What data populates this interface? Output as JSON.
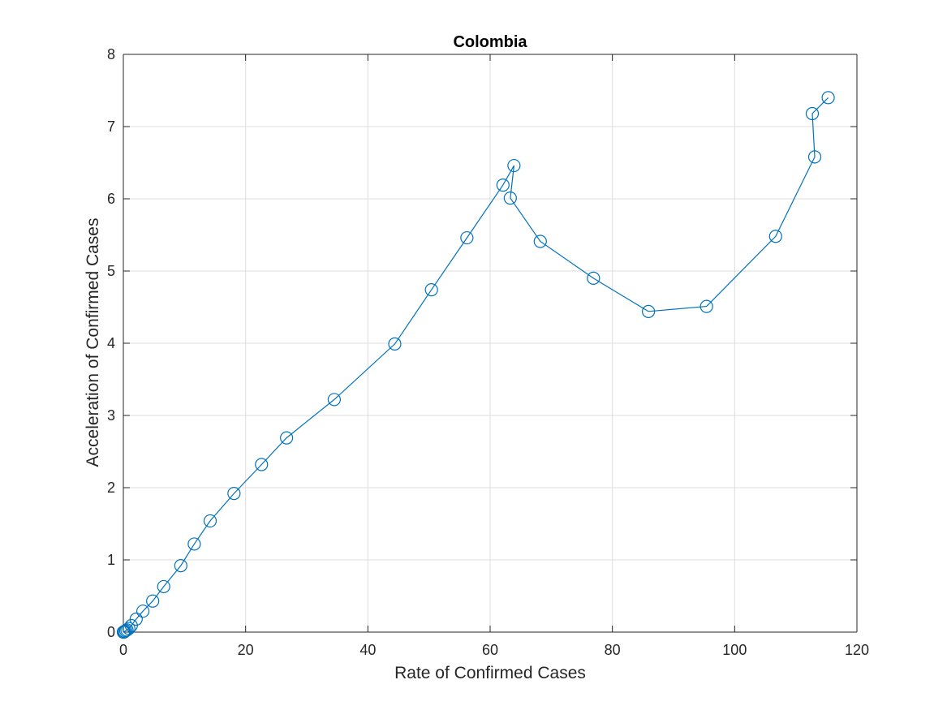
{
  "chart_data": {
    "type": "line",
    "title": "Colombia",
    "xlabel": "Rate of Confirmed Cases",
    "ylabel": "Acceleration of Confirmed Cases",
    "xlim": [
      0,
      120
    ],
    "ylim": [
      0,
      8
    ],
    "xticks": [
      "0",
      "20",
      "40",
      "60",
      "80",
      "100",
      "120"
    ],
    "yticks": [
      "0",
      "1",
      "2",
      "3",
      "4",
      "5",
      "6",
      "7",
      "8"
    ],
    "grid": true,
    "box": true,
    "marker": "circle",
    "color": "#0072BD",
    "series": [
      {
        "x": [
          0.0,
          0.1,
          0.2,
          0.4,
          0.6,
          0.9,
          1.3,
          2.1,
          3.2,
          4.8,
          6.6,
          9.4,
          11.6,
          14.2,
          18.1,
          22.6,
          26.7,
          34.5,
          44.4,
          50.4,
          56.2,
          62.1,
          63.9,
          63.3,
          68.2,
          76.9,
          85.9,
          95.4,
          106.7,
          113.1,
          112.7,
          115.3
        ],
        "y": [
          0.0,
          0.0,
          0.01,
          0.02,
          0.03,
          0.05,
          0.09,
          0.18,
          0.29,
          0.43,
          0.63,
          0.92,
          1.22,
          1.54,
          1.92,
          2.32,
          2.69,
          3.22,
          3.99,
          4.74,
          5.46,
          6.19,
          6.46,
          6.01,
          5.41,
          4.9,
          4.44,
          4.51,
          5.48,
          6.58,
          7.18,
          7.4
        ]
      }
    ]
  }
}
